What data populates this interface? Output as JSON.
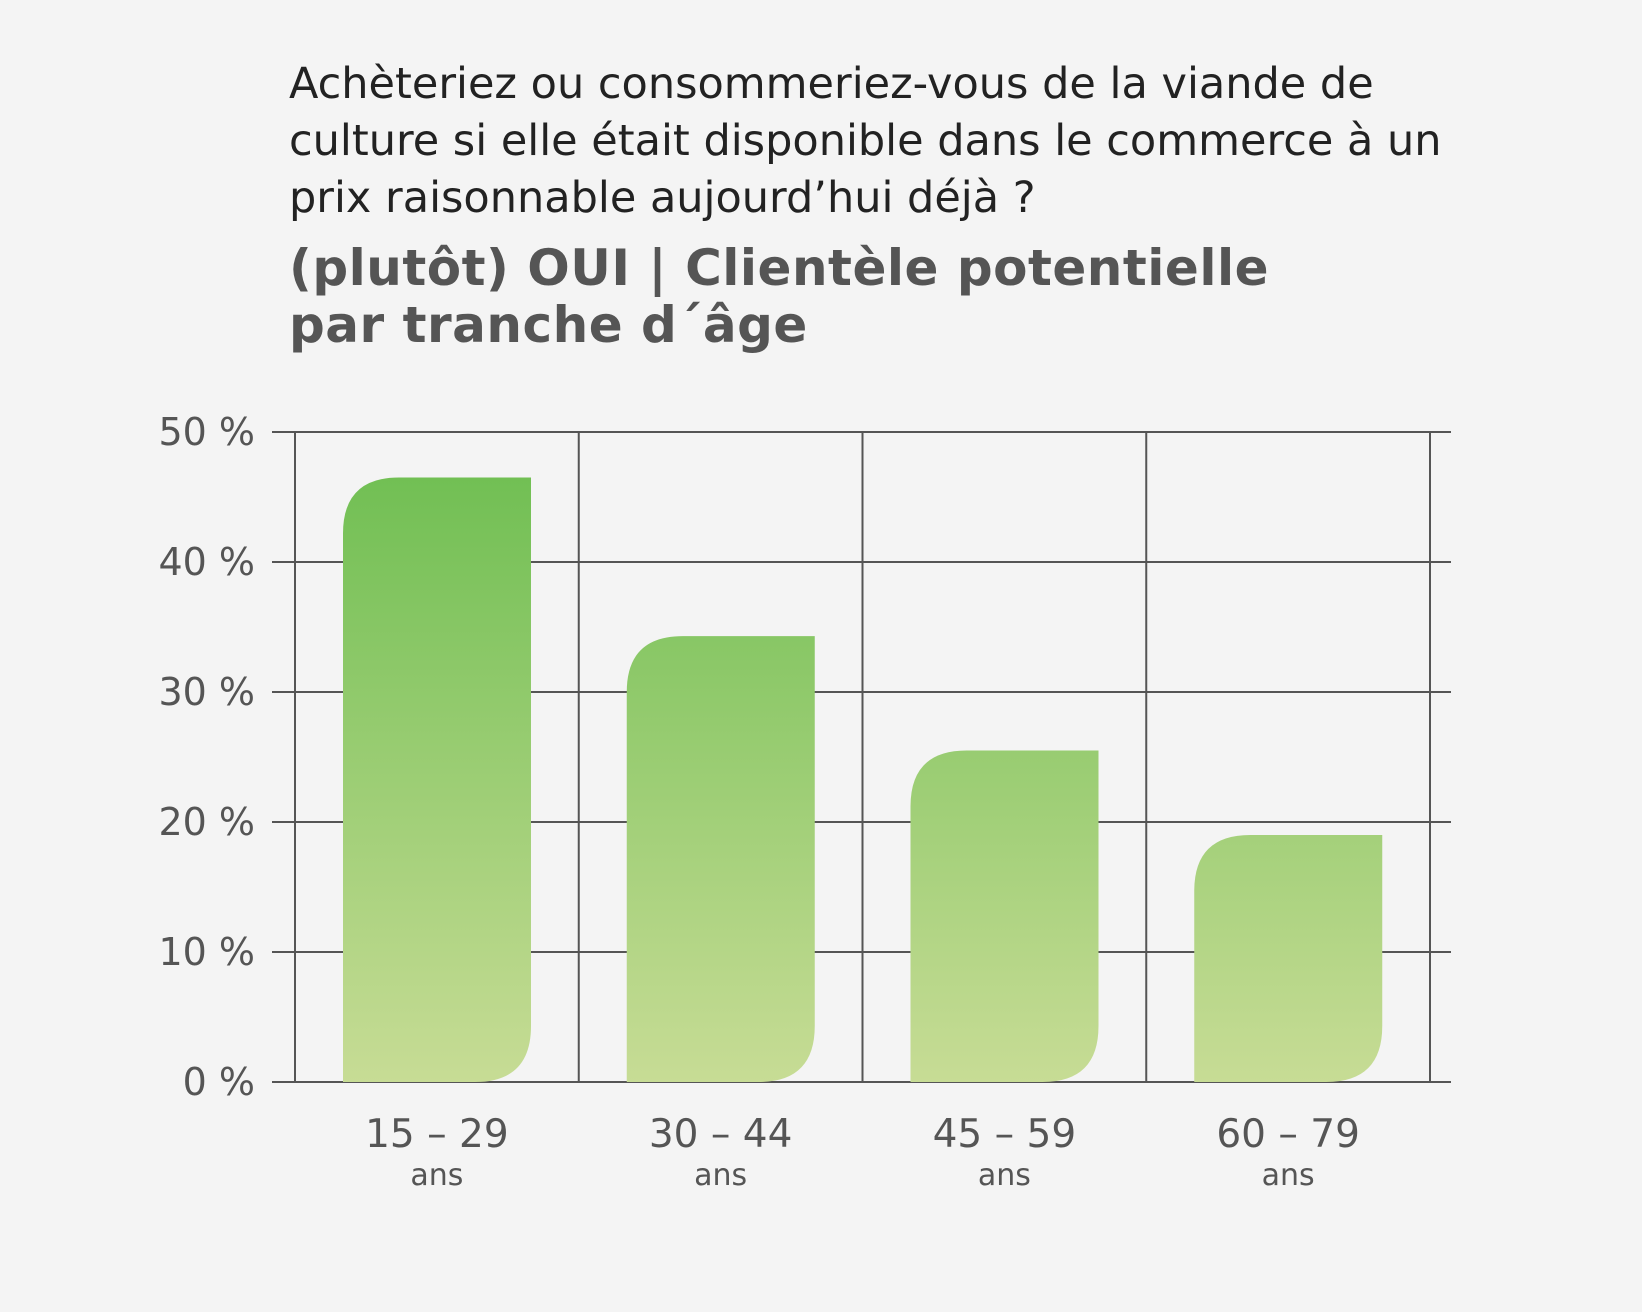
{
  "question": "Achèteriez ou consommeriez-vous de la viande de culture si elle était disponible dans le commerce à un prix raisonnable aujourd’hui déjà ?",
  "subtitle_line1": "(plutôt) OUI | Clientèle potentielle",
  "subtitle_line2": "par tranche d´âge",
  "colors": {
    "background": "#f4f4f4",
    "bar_top": "#6bbd4f",
    "bar_bottom": "#c7dc95",
    "grid": "#555555",
    "text": "#555555"
  },
  "chart_data": {
    "type": "bar",
    "categories": [
      "15 – 29",
      "30 – 44",
      "45 – 59",
      "60 – 79"
    ],
    "category_sublabel": "ans",
    "values": [
      46.5,
      34.3,
      25.5,
      19.0
    ],
    "ylim": [
      0,
      50
    ],
    "yticks": [
      0,
      10,
      20,
      30,
      40,
      50
    ],
    "ytick_labels": [
      "0 %",
      "10 %",
      "20 %",
      "30 %",
      "40 %",
      "50 %"
    ],
    "grid": true,
    "xlabel": "",
    "ylabel": ""
  }
}
